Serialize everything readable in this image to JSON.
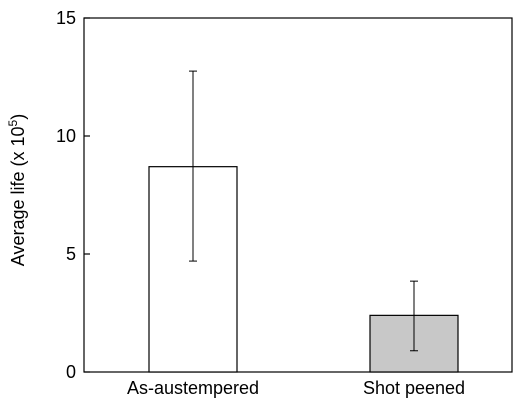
{
  "chart_data": {
    "type": "bar",
    "categories": [
      "As-austempered",
      "Shot peened"
    ],
    "values": [
      8.7,
      2.4
    ],
    "error": [
      {
        "low": 4.7,
        "high": 12.75
      },
      {
        "low": 0.9,
        "high": 3.85
      }
    ],
    "bar_colors": [
      "#ffffff",
      "#c8c8c8"
    ],
    "ylim": [
      0,
      15
    ],
    "yticks": [
      0,
      5,
      10,
      15
    ],
    "ylabel": {
      "prefix": "Average life (x 10",
      "sup": "5",
      "suffix": ")"
    },
    "xlabel": "",
    "grid": false,
    "legend": false
  }
}
